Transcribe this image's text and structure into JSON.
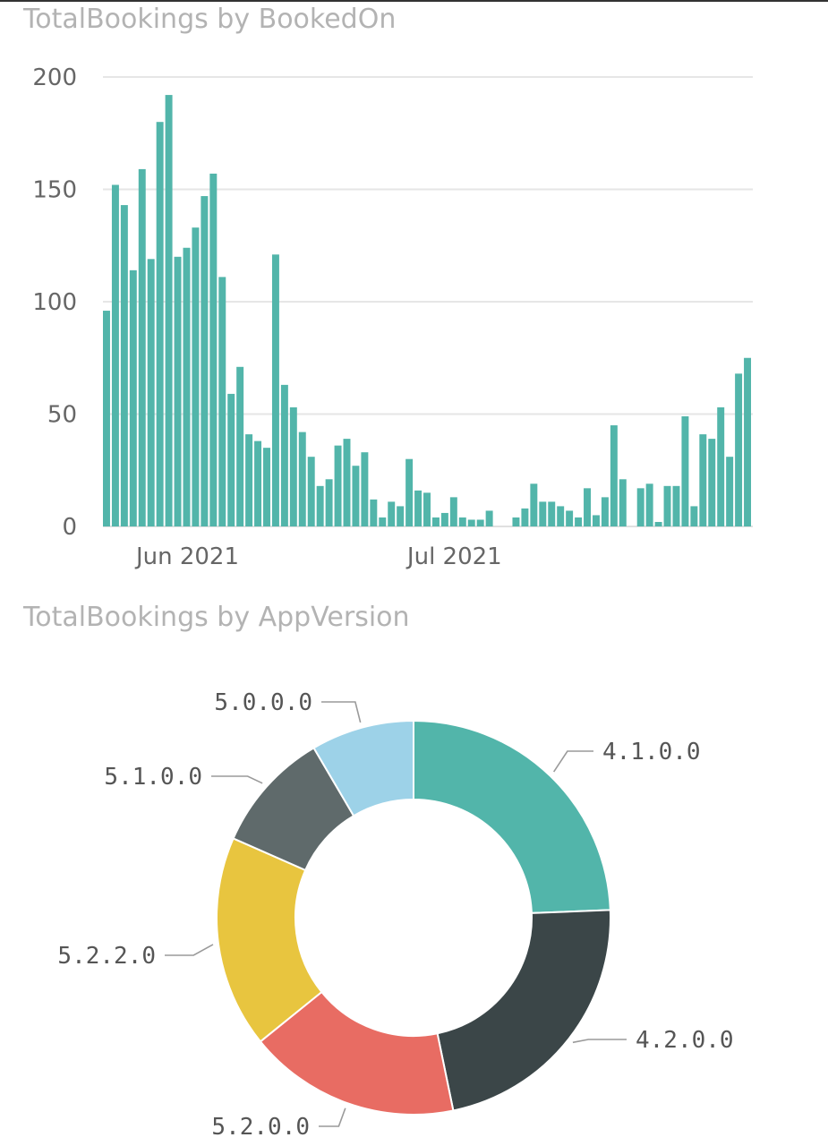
{
  "chart_data": [
    {
      "type": "bar",
      "title": "TotalBookings by BookedOn",
      "color": "#52B5AA",
      "grid": true,
      "ylim": [
        0,
        200
      ],
      "yticks": [
        "0",
        "50",
        "100",
        "150",
        "200"
      ],
      "xtick_labels": [
        "Jun 2021",
        "Jul 2021"
      ],
      "start_date": "2021-05-23",
      "values": [
        96,
        152,
        143,
        114,
        159,
        119,
        180,
        192,
        120,
        124,
        133,
        147,
        157,
        111,
        59,
        71,
        41,
        38,
        35,
        121,
        63,
        53,
        42,
        31,
        18,
        21,
        36,
        39,
        27,
        33,
        12,
        4,
        11,
        9,
        30,
        16,
        15,
        4,
        6,
        13,
        4,
        3,
        3,
        7,
        0,
        0,
        4,
        8,
        19,
        11,
        11,
        9,
        7,
        4,
        17,
        5,
        13,
        45,
        21,
        0,
        17,
        19,
        2,
        18,
        18,
        49,
        9,
        41,
        39,
        53,
        31,
        68,
        75
      ]
    },
    {
      "type": "pie",
      "title": "TotalBookings by AppVersion",
      "labels": [
        "4.1.0.0",
        "4.2.0.0",
        "5.2.0.0",
        "5.2.2.0",
        "5.1.0.0",
        "5.0.0.0"
      ],
      "values": [
        24.5,
        22.5,
        17.5,
        17.5,
        10,
        8.5
      ],
      "colors": [
        "#52B5AA",
        "#3B4648",
        "#E86C63",
        "#E8C53F",
        "#5F6A6B",
        "#9DD2E8"
      ]
    }
  ]
}
